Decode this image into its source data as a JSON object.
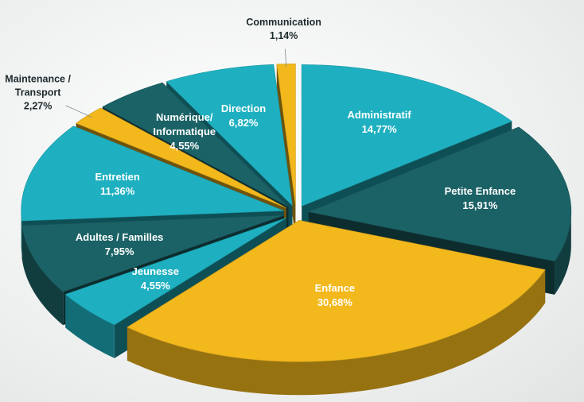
{
  "chart_data": {
    "type": "pie",
    "categories": [
      "Administratif",
      "Petite Enfance",
      "Enfance",
      "Jeunesse",
      "Adultes / Familles",
      "Entretien",
      "Maintenance / Transport",
      "Numérique/ Informatique",
      "Direction",
      "Communication"
    ],
    "values": [
      14.77,
      15.91,
      30.68,
      4.55,
      7.95,
      11.36,
      2.27,
      4.55,
      6.82,
      1.14
    ],
    "value_labels": [
      "14,77%",
      "15,91%",
      "30,68%",
      "4,55%",
      "7,95%",
      "11,36%",
      "2,27%",
      "4,55%",
      "6,82%",
      "1,14%"
    ],
    "colors": [
      "#1eb0c0",
      "#1b6266",
      "#f2b81c",
      "#1eb0c0",
      "#1b6266",
      "#1eb0c0",
      "#f2b81c",
      "#1b6266",
      "#1eb0c0",
      "#f2b81c"
    ],
    "three_d": true,
    "exploded": true
  }
}
